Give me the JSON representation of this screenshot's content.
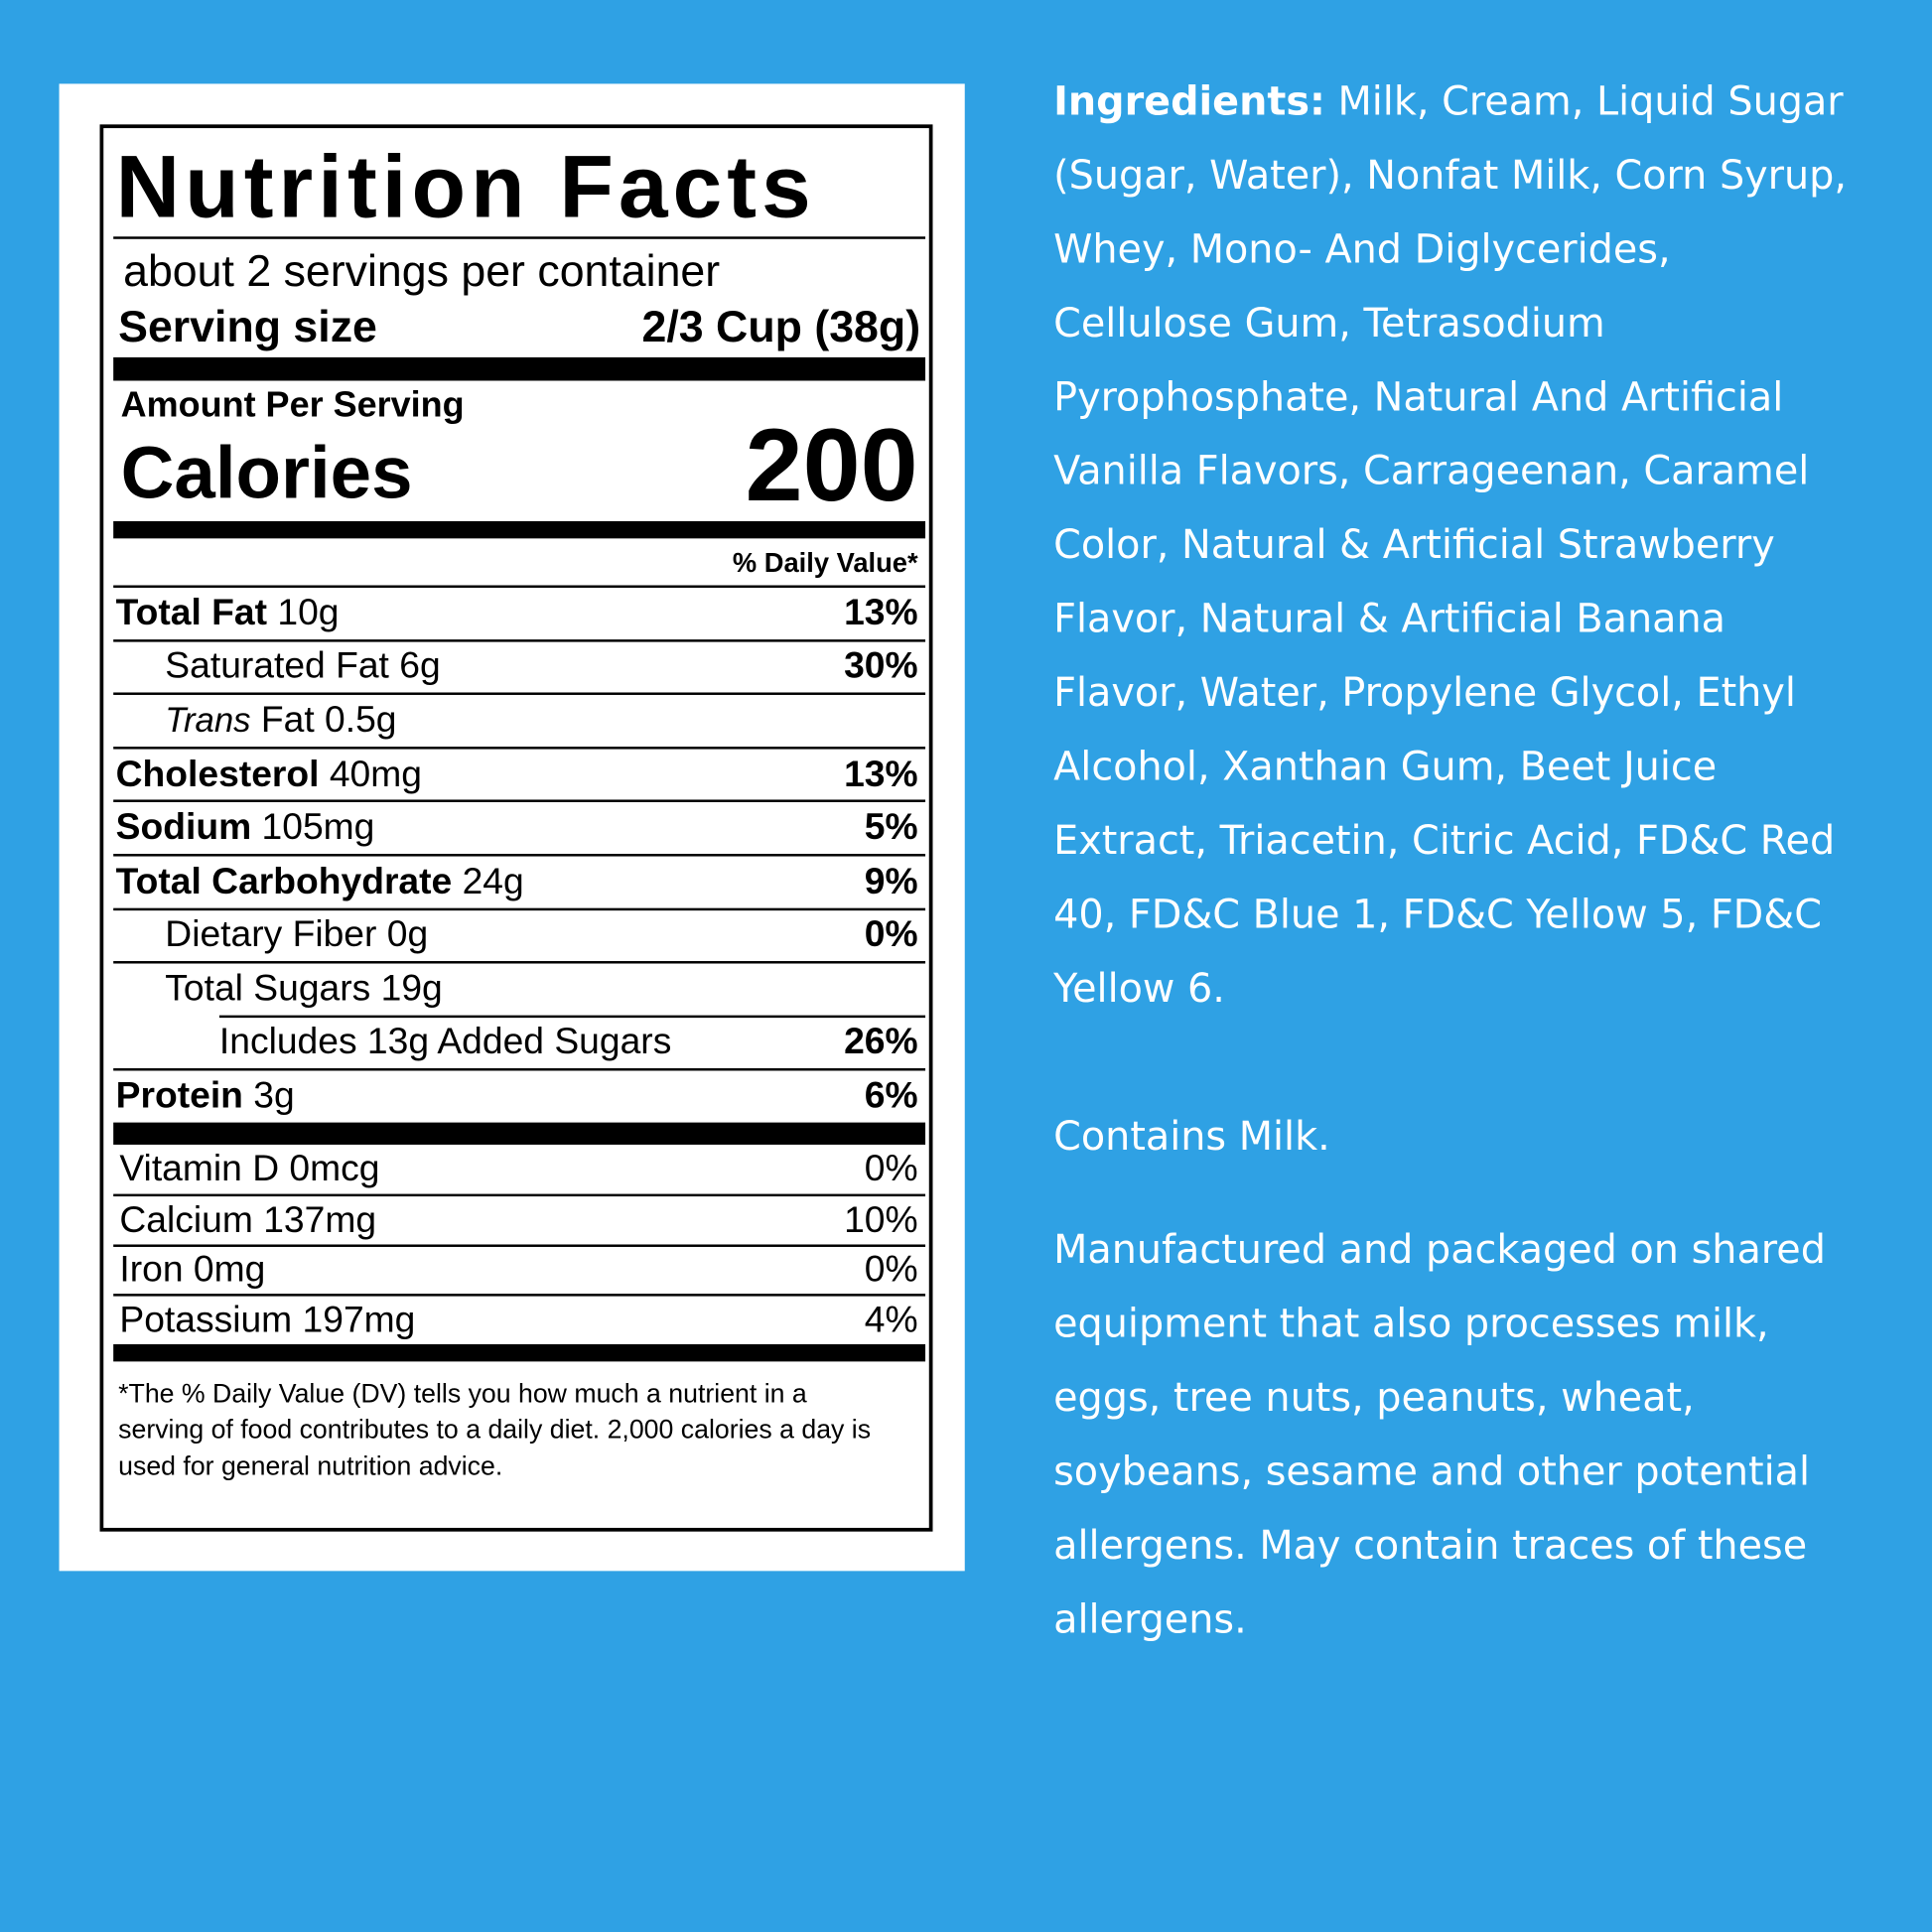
{
  "label": {
    "title": "Nutrition Facts",
    "servings": "about 2 servings per container",
    "serving_size_label": "Serving size",
    "serving_size": "2/3 Cup (38g)",
    "amount_per_serving": "Amount Per Serving",
    "calories_label": "Calories",
    "calories": 200,
    "dv_header": "% Daily Value*",
    "nutrients": [
      {
        "name": "Total Fat",
        "amount": "10g",
        "dv": "13%",
        "bold": true,
        "indent": 0
      },
      {
        "name": "Saturated Fat 6g",
        "dv": "30%",
        "bold": false,
        "indent": 1
      },
      {
        "prefix": "Trans",
        "name": "Fat 0.5g",
        "bold": false,
        "indent": 1
      },
      {
        "name": "Cholesterol",
        "amount": "40mg",
        "dv": "13%",
        "bold": true,
        "indent": 0
      },
      {
        "name": "Sodium",
        "amount": "105mg",
        "dv": "5%",
        "bold": true,
        "indent": 0
      },
      {
        "name": "Total Carbohydrate",
        "amount": "24g",
        "dv": "9%",
        "bold": true,
        "indent": 0
      },
      {
        "name": "Dietary Fiber 0g",
        "dv": "0%",
        "bold": false,
        "indent": 1
      },
      {
        "name": "Total Sugars 19g",
        "bold": false,
        "indent": 1
      },
      {
        "name": "Includes 13g Added Sugars",
        "dv": "26%",
        "bold": false,
        "indent": 2
      },
      {
        "name": "Protein",
        "amount": "3g",
        "dv": "6%",
        "bold": true,
        "indent": 0
      }
    ],
    "vitamins": [
      {
        "name": "Vitamin D 0mcg",
        "dv": "0%"
      },
      {
        "name": "Calcium 137mg",
        "dv": "10%"
      },
      {
        "name": "Iron 0mg",
        "dv": "0%"
      },
      {
        "name": "Potassium 197mg",
        "dv": "4%"
      }
    ],
    "footnote": "*The % Daily Value (DV) tells you how much a nutrient in a serving of food contributes to a daily diet. 2,000 calories a day is used for general nutrition advice."
  },
  "ingredients": {
    "heading": "Ingredients:",
    "text": "Milk, Cream, Liquid Sugar (Sugar, Water), Nonfat Milk, Corn Syrup, Whey, Mono- And Diglycerides, Cellulose Gum, Tetrasodium Pyrophosphate, Natural And Artificial Vanilla Flavors, Carrageenan, Caramel Color, Natural & Artificial Strawberry Flavor, Natural & Artificial Banana Flavor, Water, Propylene Glycol, Ethyl Alcohol, Xanthan Gum, Beet Juice Extract, Triacetin, Citric Acid, FD&C Red 40, FD&C Blue 1, FD&C Yellow 5, FD&C Yellow 6."
  },
  "contains": "Contains Milk.",
  "manufacturing": "Manufactured and packaged on shared equipment that also processes milk, eggs, tree nuts, peanuts, wheat, soybeans, sesame and other potential allergens. May contain traces of these allergens."
}
